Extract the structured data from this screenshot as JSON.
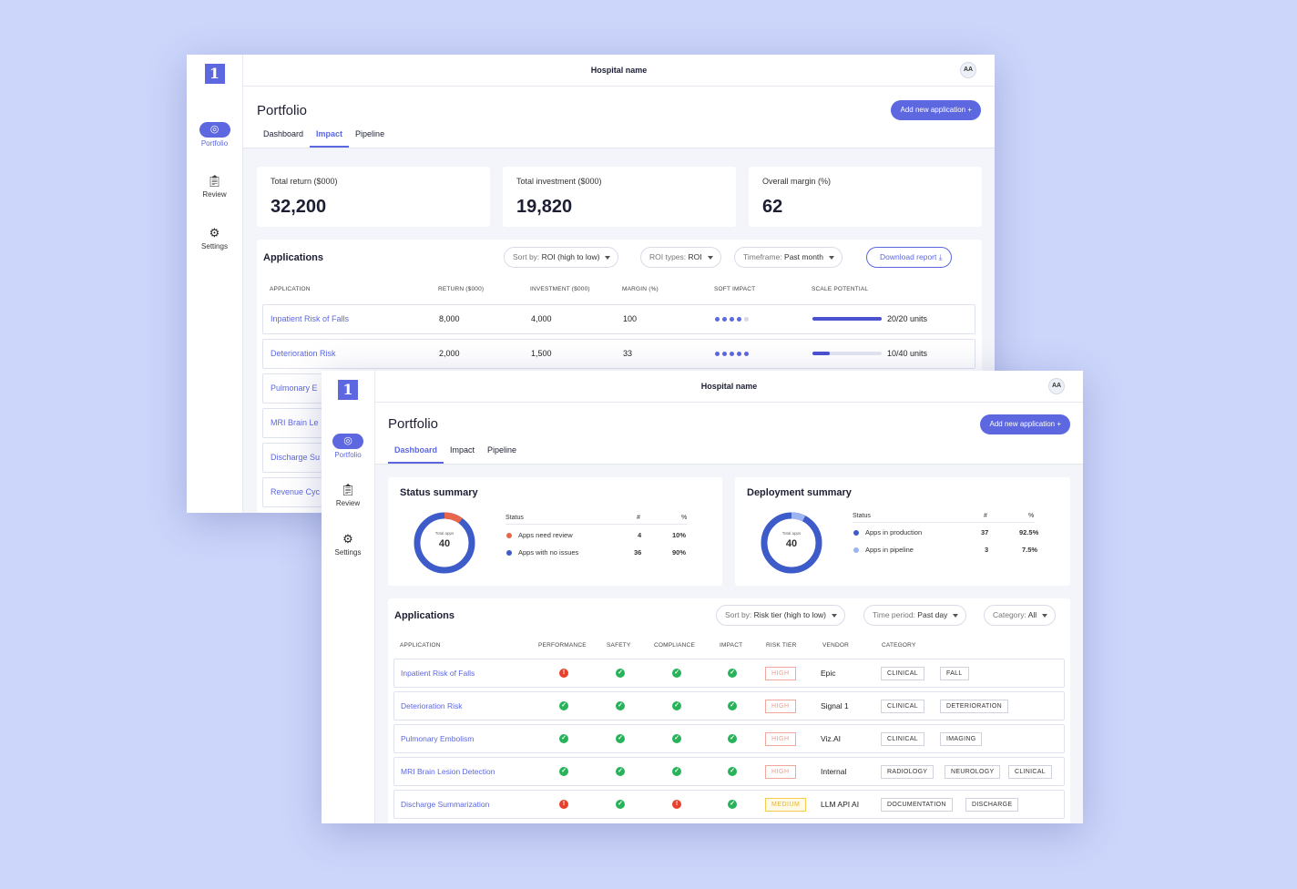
{
  "hospital_name": "Hospital name",
  "avatar_initials": "AA",
  "logo_text": "1",
  "nav": {
    "portfolio": "Portfolio",
    "review": "Review",
    "settings": "Settings"
  },
  "page_title": "Portfolio",
  "add_button": "Add new application",
  "tabs": {
    "dashboard": "Dashboard",
    "impact": "Impact",
    "pipeline": "Pipeline"
  },
  "impact": {
    "kpis": [
      {
        "label": "Total return ($000)",
        "value": "32,200"
      },
      {
        "label": "Total investment ($000)",
        "value": "19,820"
      },
      {
        "label": "Overall margin (%)",
        "value": "62"
      }
    ],
    "applications_title": "Applications",
    "filters": {
      "sort_prefix": "Sort by: ",
      "sort_value": "ROI (high to low)",
      "roi_prefix": "ROI types: ",
      "roi_value": "ROI",
      "time_prefix": "Timeframe: ",
      "time_value": "Past month"
    },
    "download": "Download report",
    "columns": [
      "APPLICATION",
      "RETURN ($000)",
      "INVESTMENT ($000)",
      "MARGIN (%)",
      "SOFT IMPACT",
      "SCALE POTENTIAL"
    ],
    "rows": [
      {
        "app": "Inpatient Risk of Falls",
        "return": "8,000",
        "investment": "4,000",
        "margin": "100",
        "soft_impact": 4,
        "scale_fraction": 1.0,
        "scale": "20/20 units"
      },
      {
        "app": "Deterioration Risk",
        "return": "2,000",
        "investment": "1,500",
        "margin": "33",
        "soft_impact": 5,
        "scale_fraction": 0.25,
        "scale": "10/40 units"
      },
      {
        "app": "Pulmonary E"
      },
      {
        "app": "MRI Brain Le"
      },
      {
        "app": "Discharge Su"
      },
      {
        "app": "Revenue Cyc"
      }
    ]
  },
  "dashboard": {
    "status": {
      "title": "Status summary",
      "donut_label": "Total apps",
      "donut_value": "40",
      "col_status": "Status",
      "col_count": "#",
      "col_pct": "%",
      "items": [
        {
          "label": "Apps need review",
          "count": "4",
          "pct": "10%",
          "color": "#e8664a"
        },
        {
          "label": "Apps with no issues",
          "count": "36",
          "pct": "90%",
          "color": "#3d5bc9"
        }
      ]
    },
    "deployment": {
      "title": "Deployment summary",
      "donut_label": "Total apps",
      "donut_value": "40",
      "col_status": "Status",
      "col_count": "#",
      "col_pct": "%",
      "items": [
        {
          "label": "Apps in production",
          "count": "37",
          "pct": "92.5%",
          "color": "#3d5bc9"
        },
        {
          "label": "Apps in pipeline",
          "count": "3",
          "pct": "7.5%",
          "color": "#9db4f2"
        }
      ]
    },
    "applications_title": "Applications",
    "filters": {
      "sort_prefix": "Sort by: ",
      "sort_value": "Risk tier (high to low)",
      "time_prefix": "Time period: ",
      "time_value": "Past day",
      "cat_prefix": "Category: ",
      "cat_value": "All"
    },
    "columns": [
      "APPLICATION",
      "PERFORMANCE",
      "SAFETY",
      "COMPLIANCE",
      "IMPACT",
      "RISK TIER",
      "VENDOR",
      "CATEGORY"
    ],
    "rows": [
      {
        "app": "Inpatient Risk of Falls",
        "perf": "bad",
        "safety": "ok",
        "compliance": "ok",
        "impact": "ok",
        "risk": "HIGH",
        "vendor": "Epic",
        "cats": [
          "CLINICAL",
          "FALL"
        ]
      },
      {
        "app": "Deterioration Risk",
        "perf": "ok",
        "safety": "ok",
        "compliance": "ok",
        "impact": "ok",
        "risk": "HIGH",
        "vendor": "Signal 1",
        "cats": [
          "CLINICAL",
          "DETERIORATION"
        ]
      },
      {
        "app": "Pulmonary Embolism",
        "perf": "ok",
        "safety": "ok",
        "compliance": "ok",
        "impact": "ok",
        "risk": "HIGH",
        "vendor": "Viz.AI",
        "cats": [
          "CLINICAL",
          "IMAGING"
        ]
      },
      {
        "app": "MRI Brain Lesion Detection",
        "perf": "ok",
        "safety": "ok",
        "compliance": "ok",
        "impact": "ok",
        "risk": "HIGH",
        "vendor": "Internal",
        "cats": [
          "RADIOLOGY",
          "NEUROLOGY",
          "CLINICAL"
        ]
      },
      {
        "app": "Discharge Summarization",
        "perf": "bad",
        "safety": "ok",
        "compliance": "bad",
        "impact": "ok",
        "risk": "MEDIUM",
        "vendor": "LLM API AI",
        "cats": [
          "DOCUMENTATION",
          "DISCHARGE"
        ]
      }
    ]
  }
}
